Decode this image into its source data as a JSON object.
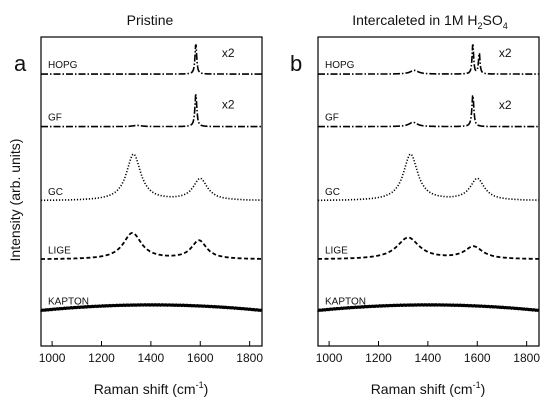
{
  "figure": {
    "ylabel": "Intensity (arb. units)"
  },
  "chart_data": [
    {
      "type": "line",
      "panel_letter": "a",
      "title": "Pristine",
      "xlabel": "Raman shift (cm⁻¹)",
      "xlabel_main": "Raman shift (cm",
      "xlabel_sup": "-1",
      "xlabel_end": ")",
      "ylabel": "Intensity (arb. units)",
      "xlim": [
        955,
        1850
      ],
      "xticks": [
        1000,
        1200,
        1400,
        1600,
        1800
      ],
      "grid": false,
      "legend": "none",
      "series": [
        {
          "name": "HOPG",
          "scale_label": "x2",
          "style": "dashdot",
          "baseline_level": 0.88,
          "peaks": [
            {
              "x": 1582,
              "height": 0.1,
              "width": 8
            }
          ]
        },
        {
          "name": "GF",
          "scale_label": "x2",
          "style": "dashdot",
          "baseline_level": 0.71,
          "peaks": [
            {
              "x": 1582,
              "height": 0.107,
              "width": 9
            },
            {
              "x": 1345,
              "height": 0.004,
              "width": 40
            }
          ]
        },
        {
          "name": "GC",
          "scale_label": "",
          "style": "dotted",
          "baseline_level": 0.47,
          "peaks": [
            {
              "x": 1330,
              "height": 0.15,
              "width": 70
            },
            {
              "x": 1600,
              "height": 0.07,
              "width": 70
            }
          ]
        },
        {
          "name": "LIGE",
          "scale_label": "",
          "style": "dashed",
          "baseline_level": 0.28,
          "peaks": [
            {
              "x": 1325,
              "height": 0.085,
              "width": 90
            },
            {
              "x": 1595,
              "height": 0.06,
              "width": 75
            }
          ]
        },
        {
          "name": "KAPTON",
          "scale_label": "",
          "style": "solid",
          "baseline_level": 0.115,
          "broad_hump": 0.018
        }
      ]
    },
    {
      "type": "line",
      "panel_letter": "b",
      "title": "Intercaleted in 1M H2SO4",
      "title_main": "Intercaleted in 1M H",
      "title_sub1": "2",
      "title_mid": "SO",
      "title_sub2": "4",
      "xlabel": "Raman shift (cm⁻¹)",
      "xlabel_main": "Raman shift (cm",
      "xlabel_sup": "-1",
      "xlabel_end": ")",
      "xlim": [
        955,
        1850
      ],
      "xticks": [
        1000,
        1200,
        1400,
        1600,
        1800
      ],
      "grid": false,
      "legend": "none",
      "series": [
        {
          "name": "HOPG",
          "scale_label": "x2",
          "style": "dashdot",
          "baseline_level": 0.88,
          "peaks": [
            {
              "x": 1582,
              "height": 0.1,
              "width": 7
            },
            {
              "x": 1608,
              "height": 0.07,
              "width": 7
            },
            {
              "x": 1345,
              "height": 0.012,
              "width": 40
            }
          ]
        },
        {
          "name": "GF",
          "scale_label": "x2",
          "style": "dashdot",
          "baseline_level": 0.71,
          "peaks": [
            {
              "x": 1582,
              "height": 0.105,
              "width": 9
            },
            {
              "x": 1340,
              "height": 0.014,
              "width": 40
            }
          ]
        },
        {
          "name": "GC",
          "scale_label": "",
          "style": "dotted",
          "baseline_level": 0.47,
          "peaks": [
            {
              "x": 1330,
              "height": 0.15,
              "width": 70
            },
            {
              "x": 1600,
              "height": 0.07,
              "width": 70
            }
          ]
        },
        {
          "name": "LIGE",
          "scale_label": "",
          "style": "dashed",
          "baseline_level": 0.28,
          "peaks": [
            {
              "x": 1320,
              "height": 0.07,
              "width": 110
            },
            {
              "x": 1585,
              "height": 0.04,
              "width": 90
            }
          ]
        },
        {
          "name": "KAPTON",
          "scale_label": "",
          "style": "solid",
          "baseline_level": 0.115,
          "broad_hump": 0.018
        }
      ]
    }
  ]
}
